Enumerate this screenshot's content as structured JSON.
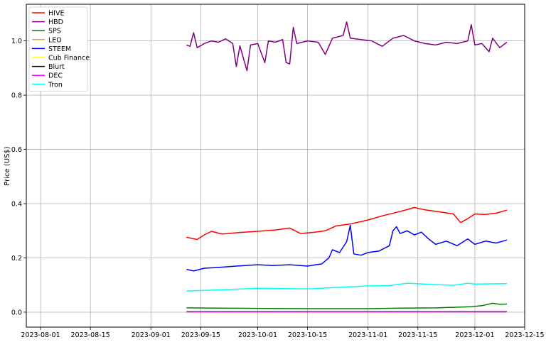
{
  "chart_data": {
    "type": "line",
    "title": "",
    "xlabel": "",
    "ylabel": "Price (US$)",
    "xlim": [
      "2023-07-28",
      "2023-12-15"
    ],
    "ylim": [
      -0.055,
      1.135
    ],
    "grid": true,
    "legend_position": "top-left",
    "x_ticks": [
      "2023-08-01",
      "2023-08-15",
      "2023-09-01",
      "2023-09-15",
      "2023-10-01",
      "2023-10-15",
      "2023-11-01",
      "2023-11-15",
      "2023-12-01",
      "2023-12-15"
    ],
    "y_ticks": [
      0.0,
      0.2,
      0.4,
      0.6,
      0.8,
      1.0
    ],
    "y_tick_labels": [
      "0.0",
      "0.2",
      "0.4",
      "0.6",
      "0.8",
      "1.0"
    ],
    "series": [
      {
        "name": "HIVE",
        "color": "#ff0000",
        "points": [
          [
            "2023-09-11",
            0.276
          ],
          [
            "2023-09-14",
            0.268
          ],
          [
            "2023-09-16",
            0.285
          ],
          [
            "2023-09-18",
            0.298
          ],
          [
            "2023-09-21",
            0.288
          ],
          [
            "2023-09-26",
            0.294
          ],
          [
            "2023-10-01",
            0.298
          ],
          [
            "2023-10-06",
            0.303
          ],
          [
            "2023-10-10",
            0.31
          ],
          [
            "2023-10-13",
            0.29
          ],
          [
            "2023-10-17",
            0.295
          ],
          [
            "2023-10-20",
            0.3
          ],
          [
            "2023-10-23",
            0.318
          ],
          [
            "2023-10-27",
            0.325
          ],
          [
            "2023-11-01",
            0.34
          ],
          [
            "2023-11-05",
            0.355
          ],
          [
            "2023-11-09",
            0.368
          ],
          [
            "2023-11-12",
            0.378
          ],
          [
            "2023-11-14",
            0.386
          ],
          [
            "2023-11-17",
            0.377
          ],
          [
            "2023-11-21",
            0.37
          ],
          [
            "2023-11-25",
            0.362
          ],
          [
            "2023-11-27",
            0.33
          ],
          [
            "2023-11-29",
            0.345
          ],
          [
            "2023-12-01",
            0.362
          ],
          [
            "2023-12-04",
            0.36
          ],
          [
            "2023-12-07",
            0.365
          ],
          [
            "2023-12-10",
            0.376
          ]
        ]
      },
      {
        "name": "HBD",
        "color": "#800080",
        "points": [
          [
            "2023-09-11",
            0.985
          ],
          [
            "2023-09-12",
            0.98
          ],
          [
            "2023-09-13",
            1.03
          ],
          [
            "2023-09-14",
            0.975
          ],
          [
            "2023-09-16",
            0.99
          ],
          [
            "2023-09-18",
            1.0
          ],
          [
            "2023-09-20",
            0.995
          ],
          [
            "2023-09-22",
            1.008
          ],
          [
            "2023-09-24",
            0.99
          ],
          [
            "2023-09-25",
            0.905
          ],
          [
            "2023-09-26",
            0.982
          ],
          [
            "2023-09-28",
            0.89
          ],
          [
            "2023-09-29",
            0.985
          ],
          [
            "2023-10-01",
            0.99
          ],
          [
            "2023-10-03",
            0.92
          ],
          [
            "2023-10-04",
            1.0
          ],
          [
            "2023-10-06",
            0.995
          ],
          [
            "2023-10-08",
            1.005
          ],
          [
            "2023-10-09",
            0.92
          ],
          [
            "2023-10-10",
            0.915
          ],
          [
            "2023-10-11",
            1.05
          ],
          [
            "2023-10-12",
            0.99
          ],
          [
            "2023-10-15",
            1.0
          ],
          [
            "2023-10-18",
            0.995
          ],
          [
            "2023-10-20",
            0.95
          ],
          [
            "2023-10-22",
            1.01
          ],
          [
            "2023-10-25",
            1.02
          ],
          [
            "2023-10-26",
            1.07
          ],
          [
            "2023-10-27",
            1.01
          ],
          [
            "2023-10-30",
            1.005
          ],
          [
            "2023-11-02",
            1.0
          ],
          [
            "2023-11-05",
            0.98
          ],
          [
            "2023-11-08",
            1.01
          ],
          [
            "2023-11-11",
            1.02
          ],
          [
            "2023-11-14",
            1.0
          ],
          [
            "2023-11-17",
            0.99
          ],
          [
            "2023-11-20",
            0.985
          ],
          [
            "2023-11-23",
            0.995
          ],
          [
            "2023-11-26",
            0.99
          ],
          [
            "2023-11-29",
            1.0
          ],
          [
            "2023-11-30",
            1.06
          ],
          [
            "2023-12-01",
            0.985
          ],
          [
            "2023-12-03",
            0.99
          ],
          [
            "2023-12-05",
            0.96
          ],
          [
            "2023-12-06",
            1.01
          ],
          [
            "2023-12-08",
            0.975
          ],
          [
            "2023-12-10",
            0.995
          ]
        ]
      },
      {
        "name": "SPS",
        "color": "#008000",
        "points": [
          [
            "2023-09-11",
            0.016
          ],
          [
            "2023-09-20",
            0.015
          ],
          [
            "2023-10-01",
            0.014
          ],
          [
            "2023-10-15",
            0.013
          ],
          [
            "2023-11-01",
            0.013
          ],
          [
            "2023-11-10",
            0.015
          ],
          [
            "2023-11-20",
            0.016
          ],
          [
            "2023-11-30",
            0.02
          ],
          [
            "2023-12-03",
            0.024
          ],
          [
            "2023-12-06",
            0.033
          ],
          [
            "2023-12-08",
            0.029
          ],
          [
            "2023-12-10",
            0.03
          ]
        ]
      },
      {
        "name": "LEO",
        "color": "#ffa500",
        "points": []
      },
      {
        "name": "STEEM",
        "color": "#0000ff",
        "points": [
          [
            "2023-09-11",
            0.158
          ],
          [
            "2023-09-13",
            0.152
          ],
          [
            "2023-09-16",
            0.162
          ],
          [
            "2023-09-20",
            0.165
          ],
          [
            "2023-09-25",
            0.17
          ],
          [
            "2023-10-01",
            0.175
          ],
          [
            "2023-10-05",
            0.172
          ],
          [
            "2023-10-10",
            0.175
          ],
          [
            "2023-10-15",
            0.17
          ],
          [
            "2023-10-19",
            0.178
          ],
          [
            "2023-10-21",
            0.2
          ],
          [
            "2023-10-22",
            0.23
          ],
          [
            "2023-10-24",
            0.22
          ],
          [
            "2023-10-26",
            0.26
          ],
          [
            "2023-10-27",
            0.32
          ],
          [
            "2023-10-28",
            0.215
          ],
          [
            "2023-10-30",
            0.21
          ],
          [
            "2023-11-01",
            0.22
          ],
          [
            "2023-11-04",
            0.225
          ],
          [
            "2023-11-07",
            0.245
          ],
          [
            "2023-11-08",
            0.3
          ],
          [
            "2023-11-09",
            0.315
          ],
          [
            "2023-11-10",
            0.29
          ],
          [
            "2023-11-12",
            0.3
          ],
          [
            "2023-11-14",
            0.285
          ],
          [
            "2023-11-16",
            0.295
          ],
          [
            "2023-11-18",
            0.27
          ],
          [
            "2023-11-20",
            0.25
          ],
          [
            "2023-11-23",
            0.262
          ],
          [
            "2023-11-26",
            0.245
          ],
          [
            "2023-11-29",
            0.27
          ],
          [
            "2023-12-01",
            0.25
          ],
          [
            "2023-12-04",
            0.262
          ],
          [
            "2023-12-07",
            0.255
          ],
          [
            "2023-12-10",
            0.266
          ]
        ]
      },
      {
        "name": "Cub Finance",
        "color": "#ffff00",
        "points": []
      },
      {
        "name": "Blurt",
        "color": "#000000",
        "points": [
          [
            "2023-09-11",
            0.002
          ],
          [
            "2023-12-10",
            0.002
          ]
        ]
      },
      {
        "name": "DEC",
        "color": "#ff00ff",
        "points": [
          [
            "2023-09-11",
            0.001
          ],
          [
            "2023-12-10",
            0.001
          ]
        ]
      },
      {
        "name": "Tron",
        "color": "#00ffff",
        "points": [
          [
            "2023-09-11",
            0.078
          ],
          [
            "2023-09-20",
            0.082
          ],
          [
            "2023-10-01",
            0.088
          ],
          [
            "2023-10-15",
            0.086
          ],
          [
            "2023-10-25",
            0.092
          ],
          [
            "2023-11-01",
            0.097
          ],
          [
            "2023-11-07",
            0.098
          ],
          [
            "2023-11-12",
            0.107
          ],
          [
            "2023-11-18",
            0.103
          ],
          [
            "2023-11-25",
            0.099
          ],
          [
            "2023-11-29",
            0.107
          ],
          [
            "2023-12-01",
            0.104
          ],
          [
            "2023-12-10",
            0.105
          ]
        ]
      }
    ]
  }
}
